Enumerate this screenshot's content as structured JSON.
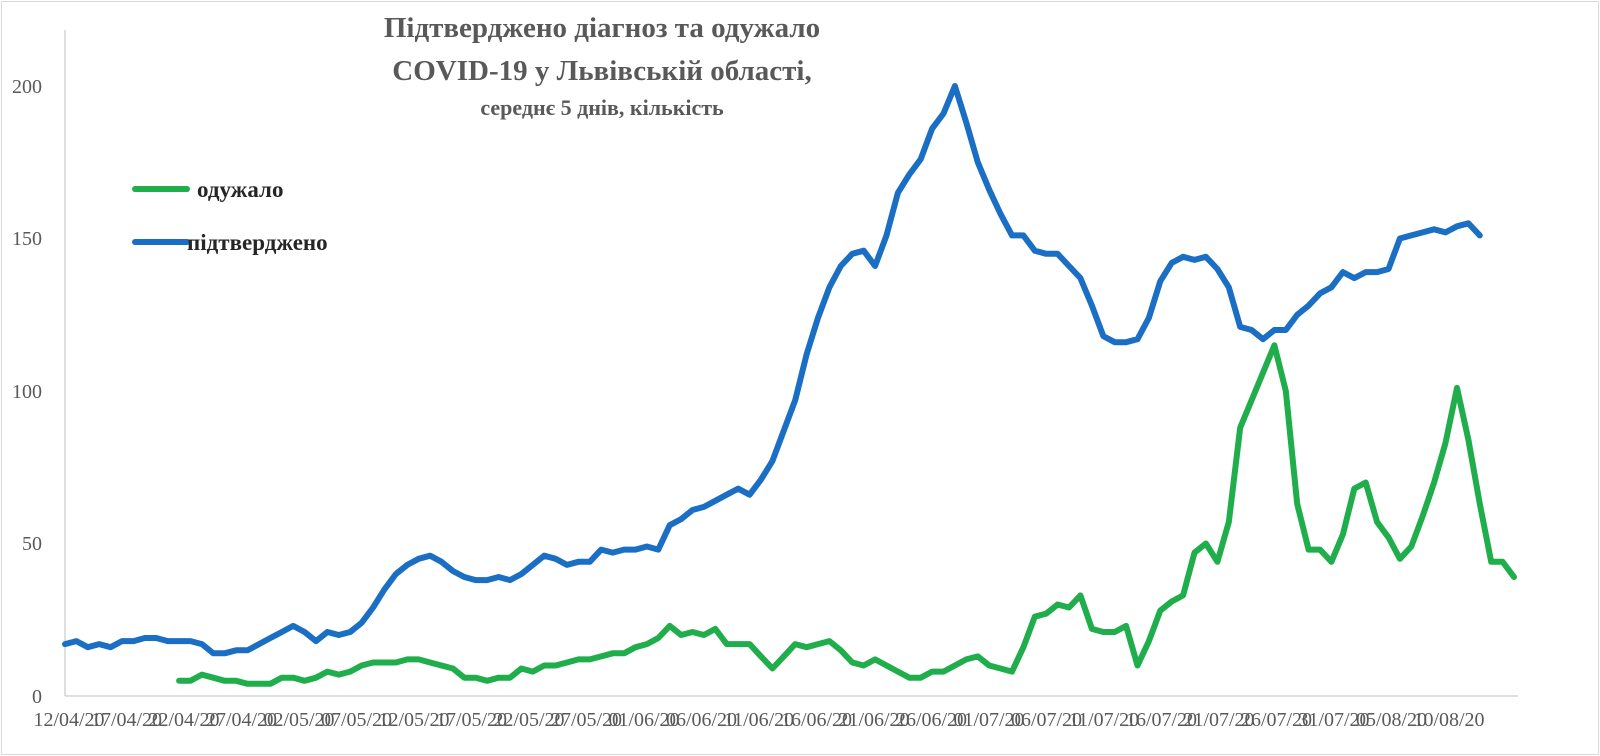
{
  "chart_data": {
    "type": "line",
    "title": "Підтверджено діагноз та одужало",
    "title_line2": "COVID-19 у Львівській області,",
    "subtitle": "середнє 5 днів, кількість",
    "xlabel": "",
    "ylabel": "",
    "ylim": [
      0,
      200
    ],
    "yticks": [
      "0",
      "50",
      "100",
      "150",
      "200"
    ],
    "grid": false,
    "legend_position": "top-left",
    "x_labels": [
      "12/04/20",
      "17/04/20",
      "22/04/20",
      "27/04/20",
      "02/05/20",
      "07/05/20",
      "12/05/20",
      "17/05/20",
      "22/05/20",
      "27/05/20",
      "01/06/20",
      "06/06/20",
      "11/06/20",
      "16/06/20",
      "21/06/20",
      "26/06/20",
      "01/07/20",
      "06/07/20",
      "11/07/20",
      "16/07/20",
      "21/07/20",
      "26/07/20",
      "31/07/20",
      "05/08/20",
      "10/08/20"
    ],
    "series": [
      {
        "name": "одужало",
        "color": "#1fae4b",
        "start_index": 10,
        "values": [
          5,
          5,
          7,
          6,
          5,
          5,
          4,
          4,
          4,
          6,
          6,
          5,
          6,
          8,
          7,
          8,
          10,
          11,
          11,
          11,
          12,
          12,
          11,
          10,
          9,
          6,
          6,
          5,
          6,
          6,
          9,
          8,
          10,
          10,
          11,
          12,
          12,
          13,
          14,
          14,
          16,
          17,
          19,
          23,
          20,
          21,
          20,
          22,
          17,
          17,
          17,
          13,
          9,
          13,
          17,
          16,
          17,
          18,
          15,
          11,
          10,
          12,
          10,
          8,
          6,
          6,
          8,
          8,
          10,
          12,
          13,
          10,
          9,
          8,
          16,
          26,
          27,
          30,
          29,
          33,
          22,
          21,
          21,
          23,
          10,
          18,
          28,
          31,
          33,
          47,
          50,
          44,
          57,
          88,
          97,
          106,
          115,
          100,
          63,
          48,
          48,
          44,
          53,
          68,
          70,
          57,
          52,
          45,
          49,
          59,
          70,
          83,
          101,
          84,
          63,
          44,
          44,
          39
        ]
      },
      {
        "name": "підтверджено",
        "color": "#1a6fc4",
        "start_index": 0,
        "values": [
          17,
          18,
          16,
          17,
          16,
          18,
          18,
          19,
          19,
          18,
          18,
          18,
          17,
          14,
          14,
          15,
          15,
          17,
          19,
          21,
          23,
          21,
          18,
          21,
          20,
          21,
          24,
          29,
          35,
          40,
          43,
          45,
          46,
          44,
          41,
          39,
          38,
          38,
          39,
          38,
          40,
          43,
          46,
          45,
          43,
          44,
          44,
          48,
          47,
          48,
          48,
          49,
          48,
          56,
          58,
          61,
          62,
          64,
          66,
          68,
          66,
          71,
          77,
          87,
          97,
          112,
          124,
          134,
          141,
          145,
          146,
          141,
          151,
          165,
          171,
          176,
          186,
          191,
          200,
          188,
          175,
          166,
          158,
          151,
          151,
          146,
          145,
          145,
          141,
          137,
          128,
          118,
          116,
          116,
          117,
          124,
          136,
          142,
          144,
          143,
          144,
          140,
          134,
          121,
          120,
          117,
          120,
          120,
          125,
          128,
          132,
          134,
          139,
          137,
          139,
          139,
          140,
          150,
          151,
          152,
          153,
          152,
          154,
          155,
          151
        ]
      }
    ]
  }
}
